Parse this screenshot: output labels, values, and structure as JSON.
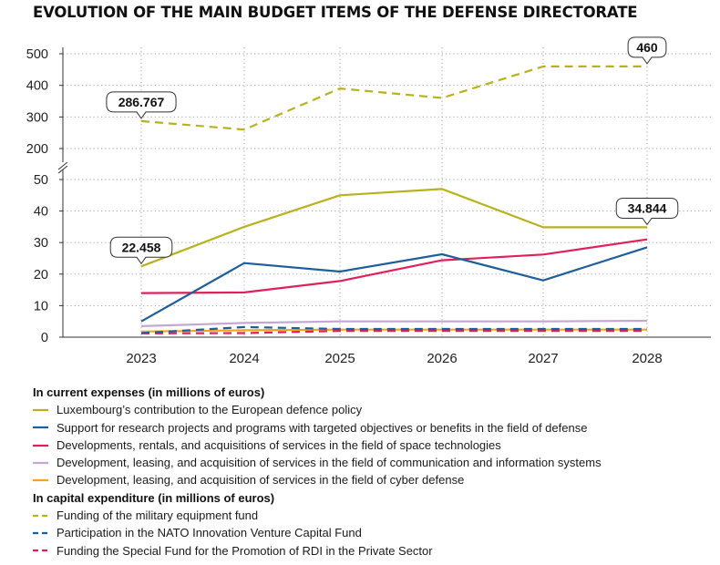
{
  "chart_data": {
    "type": "line",
    "title": "EVOLUTION OF THE MAIN BUDGET ITEMS OF THE DEFENSE DIRECTORATE",
    "x": [
      "2023",
      "2024",
      "2025",
      "2026",
      "2027",
      "2028"
    ],
    "axis": {
      "broken": true,
      "lower_range": [
        0,
        50
      ],
      "upper_range": [
        200,
        500
      ],
      "lower_ticks": [
        "0",
        "10",
        "20",
        "30",
        "40",
        "50"
      ],
      "upper_ticks": [
        "200",
        "300",
        "400",
        "500"
      ],
      "grid": "dotted"
    },
    "legend_groups": [
      {
        "heading": "In current expenses  (in millions of euros)"
      },
      {
        "heading": "In capital expenditure (in millions of euros)"
      }
    ],
    "series": [
      {
        "name": "Luxembourg’s contribution to the European defence policy",
        "group": 0,
        "color": "#b8b21e",
        "dash": false,
        "values": [
          22.458,
          35,
          45,
          47,
          34.844,
          34.844
        ]
      },
      {
        "name": "Support for research projects and programs with targeted objectives or benefits in the field of defense",
        "group": 0,
        "color": "#1f5f99",
        "dash": false,
        "values": [
          5,
          23.5,
          20.8,
          26.3,
          18,
          28.5
        ]
      },
      {
        "name": "Developments, rentals, and acquisitions of services in the field of space technologies",
        "group": 0,
        "color": "#e0205a",
        "dash": false,
        "values": [
          14,
          14.2,
          17.8,
          24.4,
          26.2,
          31
        ]
      },
      {
        "name": "Development, leasing, and acquisition of services in the field of communication and information systems",
        "group": 0,
        "color": "#c3a8d3",
        "dash": false,
        "values": [
          3.5,
          4.5,
          5,
          5,
          5,
          5.2
        ]
      },
      {
        "name": "Development, leasing, and acquisition of services in the field of cyber defense",
        "group": 0,
        "color": "#f5a31d",
        "dash": false,
        "values": [
          1.8,
          2.2,
          2.4,
          2.4,
          2.4,
          2.4
        ]
      },
      {
        "name": "Funding of the military equipment fund",
        "group": 1,
        "color": "#b8b21e",
        "dash": true,
        "values": [
          286.767,
          260,
          390,
          360,
          460,
          460
        ]
      },
      {
        "name": "Participation in the NATO Innovation Venture Capital Fund",
        "group": 1,
        "color": "#1f5f99",
        "dash": true,
        "values": [
          1.3,
          3.2,
          2.6,
          2.6,
          2.6,
          2.6
        ]
      },
      {
        "name": "Funding the Special Fund for the Promotion of RDI in the Private Sector",
        "group": 1,
        "color": "#e0205a",
        "dash": true,
        "values": [
          1.2,
          1.3,
          2,
          2,
          2,
          2
        ]
      }
    ],
    "callouts": [
      {
        "text": "286.767",
        "series": 5,
        "index": 0
      },
      {
        "text": "460",
        "series": 5,
        "index": 5
      },
      {
        "text": "22.458",
        "series": 0,
        "index": 0
      },
      {
        "text": "34.844",
        "series": 0,
        "index": 5
      }
    ]
  }
}
